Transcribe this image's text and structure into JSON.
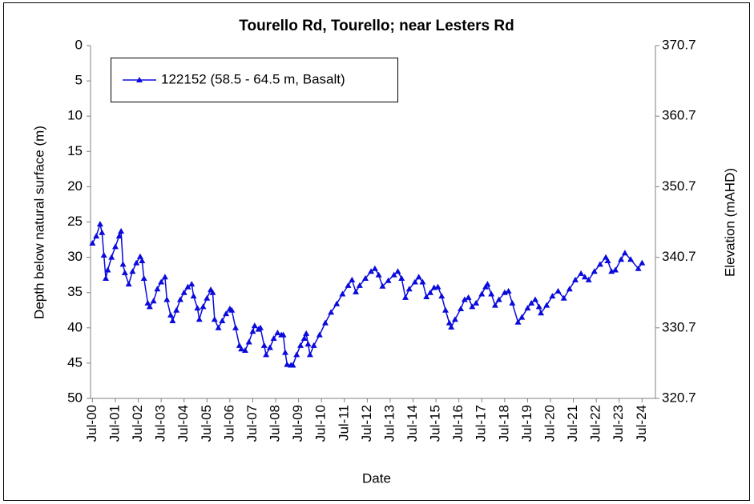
{
  "chart_data": {
    "type": "line",
    "title": "Tourello Rd, Tourello; near Lesters Rd",
    "x_label": "Date",
    "y_label": "Depth below natural surface (m)",
    "y2_label": "Elevation (mAHD)",
    "xlim": [
      "2000-06",
      "2025-02"
    ],
    "xticks": [
      {
        "value": "2000-07",
        "label": "Jul-00"
      },
      {
        "value": "2001-07",
        "label": "Jul-01"
      },
      {
        "value": "2002-07",
        "label": "Jul-02"
      },
      {
        "value": "2003-07",
        "label": "Jul-03"
      },
      {
        "value": "2004-07",
        "label": "Jul-04"
      },
      {
        "value": "2005-07",
        "label": "Jul-05"
      },
      {
        "value": "2006-07",
        "label": "Jul-06"
      },
      {
        "value": "2007-07",
        "label": "Jul-07"
      },
      {
        "value": "2008-07",
        "label": "Jul-08"
      },
      {
        "value": "2009-07",
        "label": "Jul-09"
      },
      {
        "value": "2010-07",
        "label": "Jul-10"
      },
      {
        "value": "2011-07",
        "label": "Jul-11"
      },
      {
        "value": "2012-07",
        "label": "Jul-12"
      },
      {
        "value": "2013-07",
        "label": "Jul-13"
      },
      {
        "value": "2014-07",
        "label": "Jul-14"
      },
      {
        "value": "2015-07",
        "label": "Jul-15"
      },
      {
        "value": "2016-07",
        "label": "Jul-16"
      },
      {
        "value": "2017-07",
        "label": "Jul-17"
      },
      {
        "value": "2018-07",
        "label": "Jul-18"
      },
      {
        "value": "2019-07",
        "label": "Jul-19"
      },
      {
        "value": "2020-07",
        "label": "Jul-20"
      },
      {
        "value": "2021-07",
        "label": "Jul-21"
      },
      {
        "value": "2022-07",
        "label": "Jul-22"
      },
      {
        "value": "2023-07",
        "label": "Jul-23"
      },
      {
        "value": "2024-07",
        "label": "Jul-24"
      }
    ],
    "ylim": [
      50,
      0
    ],
    "yticks": [
      0,
      5,
      10,
      15,
      20,
      25,
      30,
      35,
      40,
      45,
      50
    ],
    "y2lim": [
      320.7,
      370.7
    ],
    "y2ticks": [
      370.7,
      360.7,
      350.7,
      340.7,
      330.7,
      320.7
    ],
    "grid": false,
    "legend": "upper left",
    "x": [
      "2000-07",
      "2000-09",
      "2000-11",
      "2000-12",
      "2001-01",
      "2001-02",
      "2001-03",
      "2001-05",
      "2001-07",
      "2001-09",
      "2001-10",
      "2001-11",
      "2001-12",
      "2002-02",
      "2002-04",
      "2002-06",
      "2002-08",
      "2002-09",
      "2002-10",
      "2002-12",
      "2003-01",
      "2003-03",
      "2003-05",
      "2003-07",
      "2003-09",
      "2003-10",
      "2003-12",
      "2004-01",
      "2004-03",
      "2004-05",
      "2004-07",
      "2004-09",
      "2004-11",
      "2004-12",
      "2005-02",
      "2005-03",
      "2005-05",
      "2005-07",
      "2005-09",
      "2005-10",
      "2005-11",
      "2006-01",
      "2006-03",
      "2006-05",
      "2006-07",
      "2006-08",
      "2006-10",
      "2006-12",
      "2007-01",
      "2007-03",
      "2007-05",
      "2007-07",
      "2007-08",
      "2007-10",
      "2007-11",
      "2008-01",
      "2008-02",
      "2008-04",
      "2008-06",
      "2008-08",
      "2008-10",
      "2008-11",
      "2008-12",
      "2009-01",
      "2009-03",
      "2009-04",
      "2009-06",
      "2009-08",
      "2009-10",
      "2009-11",
      "2009-12",
      "2010-01",
      "2010-03",
      "2010-06",
      "2010-09",
      "2010-12",
      "2011-03",
      "2011-06",
      "2011-09",
      "2011-11",
      "2012-01",
      "2012-03",
      "2012-06",
      "2012-09",
      "2012-11",
      "2013-01",
      "2013-03",
      "2013-06",
      "2013-09",
      "2013-11",
      "2014-01",
      "2014-03",
      "2014-05",
      "2014-08",
      "2014-10",
      "2014-12",
      "2015-02",
      "2015-04",
      "2015-06",
      "2015-08",
      "2015-10",
      "2015-12",
      "2016-02",
      "2016-03",
      "2016-05",
      "2016-08",
      "2016-10",
      "2016-12",
      "2017-02",
      "2017-04",
      "2017-07",
      "2017-09",
      "2017-10",
      "2017-12",
      "2018-02",
      "2018-04",
      "2018-07",
      "2018-09",
      "2018-11",
      "2019-02",
      "2019-04",
      "2019-07",
      "2019-09",
      "2019-11",
      "2020-01",
      "2020-02",
      "2020-05",
      "2020-08",
      "2020-11",
      "2021-02",
      "2021-05",
      "2021-08",
      "2021-11",
      "2022-01",
      "2022-03",
      "2022-06",
      "2022-09",
      "2022-12",
      "2023-01",
      "2023-03",
      "2023-05",
      "2023-08",
      "2023-10",
      "2024-01",
      "2024-05",
      "2024-07"
    ],
    "series": [
      {
        "name": "122152 (58.5 - 64.5 m, Basalt)",
        "color": "#0a0adc",
        "values": [
          28.0,
          27.0,
          25.3,
          26.5,
          29.7,
          33.0,
          31.8,
          30.0,
          28.5,
          27.0,
          26.3,
          31.0,
          32.2,
          33.8,
          32.0,
          30.8,
          29.9,
          30.5,
          33.0,
          36.5,
          37.0,
          36.2,
          34.5,
          33.5,
          32.8,
          36.0,
          38.2,
          39.0,
          37.5,
          36.0,
          35.0,
          34.2,
          33.8,
          35.5,
          37.2,
          38.8,
          37.0,
          35.8,
          34.6,
          35.0,
          38.8,
          40.0,
          39.0,
          38.0,
          37.3,
          37.5,
          40.0,
          42.5,
          43.0,
          43.2,
          42.0,
          40.5,
          39.7,
          40.2,
          40.0,
          42.5,
          43.8,
          42.8,
          41.5,
          40.7,
          41.0,
          41.0,
          43.5,
          45.2,
          45.3,
          45.3,
          43.8,
          42.5,
          41.5,
          40.8,
          42.3,
          43.8,
          42.5,
          41.0,
          39.3,
          37.8,
          36.6,
          35.2,
          34.0,
          33.2,
          34.9,
          34.0,
          33.0,
          32.0,
          31.6,
          32.5,
          34.1,
          33.3,
          32.5,
          32.0,
          33.0,
          35.7,
          34.5,
          33.5,
          32.8,
          33.5,
          35.6,
          35.0,
          34.3,
          34.2,
          35.5,
          37.5,
          39.3,
          39.9,
          38.8,
          37.3,
          36.0,
          35.7,
          37.0,
          36.5,
          35.2,
          34.2,
          33.8,
          35.2,
          36.8,
          36.0,
          35.0,
          34.8,
          36.5,
          39.2,
          38.5,
          37.2,
          36.5,
          36.0,
          37.0,
          37.9,
          36.8,
          35.5,
          34.8,
          35.8,
          34.5,
          33.2,
          32.3,
          32.8,
          33.2,
          32.0,
          31.0,
          30.0,
          30.5,
          32.0,
          31.8,
          30.3,
          29.4,
          30.3,
          31.6,
          30.8
        ]
      }
    ]
  }
}
